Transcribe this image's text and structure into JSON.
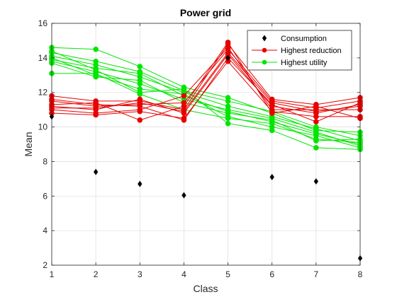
{
  "chart_data": {
    "type": "line",
    "title": "Power grid",
    "xlabel": "Class",
    "ylabel": "Mean",
    "xlim": [
      1,
      8
    ],
    "ylim": [
      2,
      16
    ],
    "xticks": [
      1,
      2,
      3,
      4,
      5,
      6,
      7,
      8
    ],
    "yticks": [
      2,
      4,
      6,
      8,
      10,
      12,
      14,
      16
    ],
    "grid": true,
    "legend_position": "top-right",
    "colors": {
      "consumption": "#000000",
      "reduction": "#e60000",
      "utility": "#00e600"
    },
    "legend": [
      {
        "label": "Consumption",
        "style": "diamond",
        "color": "#000000"
      },
      {
        "label": "Highest reduction",
        "style": "line-circle",
        "color": "#e60000"
      },
      {
        "label": "Highest utility",
        "style": "line-circle",
        "color": "#00e600"
      }
    ],
    "x": [
      1,
      2,
      3,
      4,
      5,
      6,
      7,
      8
    ],
    "series": [
      {
        "group": "consumption",
        "values": [
          10.6,
          7.4,
          6.7,
          6.05,
          14.0,
          7.1,
          6.85,
          2.4
        ]
      },
      {
        "group": "utility",
        "values": [
          14.6,
          14.5,
          13.5,
          12.3,
          11.7,
          10.8,
          9.8,
          9.7
        ]
      },
      {
        "group": "utility",
        "values": [
          14.3,
          13.8,
          13.2,
          12.1,
          11.5,
          10.9,
          10.0,
          9.5
        ]
      },
      {
        "group": "utility",
        "values": [
          14.1,
          13.6,
          12.9,
          12.0,
          11.2,
          10.6,
          9.9,
          9.2
        ]
      },
      {
        "group": "utility",
        "values": [
          13.9,
          13.4,
          13.1,
          11.8,
          10.9,
          10.3,
          9.6,
          9.0
        ]
      },
      {
        "group": "utility",
        "values": [
          13.8,
          13.2,
          12.5,
          11.6,
          11.0,
          10.5,
          9.7,
          8.9
        ]
      },
      {
        "group": "utility",
        "values": [
          14.0,
          13.0,
          12.2,
          11.9,
          10.6,
          10.0,
          9.5,
          8.8
        ]
      },
      {
        "group": "utility",
        "values": [
          13.1,
          13.1,
          11.9,
          11.0,
          10.5,
          10.2,
          9.3,
          9.1
        ]
      },
      {
        "group": "utility",
        "values": [
          14.4,
          13.3,
          12.0,
          12.2,
          10.2,
          9.8,
          8.8,
          8.7
        ]
      },
      {
        "group": "utility",
        "values": [
          13.7,
          12.9,
          12.7,
          11.4,
          10.8,
          10.4,
          9.2,
          9.3
        ]
      },
      {
        "group": "reduction",
        "values": [
          11.8,
          11.5,
          11.5,
          11.0,
          14.8,
          11.6,
          11.3,
          11.7
        ]
      },
      {
        "group": "reduction",
        "values": [
          11.5,
          11.2,
          11.3,
          11.4,
          14.5,
          11.5,
          11.1,
          11.5
        ]
      },
      {
        "group": "reduction",
        "values": [
          11.2,
          11.0,
          11.6,
          10.8,
          14.2,
          11.2,
          10.8,
          11.3
        ]
      },
      {
        "group": "reduction",
        "values": [
          11.0,
          10.8,
          11.0,
          11.8,
          14.6,
          11.0,
          11.0,
          11.0
        ]
      },
      {
        "group": "reduction",
        "values": [
          10.8,
          10.7,
          10.9,
          10.5,
          13.8,
          10.9,
          10.6,
          10.6
        ]
      },
      {
        "group": "reduction",
        "values": [
          11.6,
          11.3,
          11.2,
          10.4,
          14.0,
          11.3,
          10.3,
          11.4
        ]
      },
      {
        "group": "reduction",
        "values": [
          11.3,
          11.4,
          10.4,
          11.2,
          14.9,
          10.8,
          11.2,
          10.5
        ]
      },
      {
        "group": "reduction",
        "values": [
          11.1,
          11.1,
          11.4,
          10.9,
          14.3,
          11.4,
          10.9,
          11.2
        ]
      }
    ]
  }
}
